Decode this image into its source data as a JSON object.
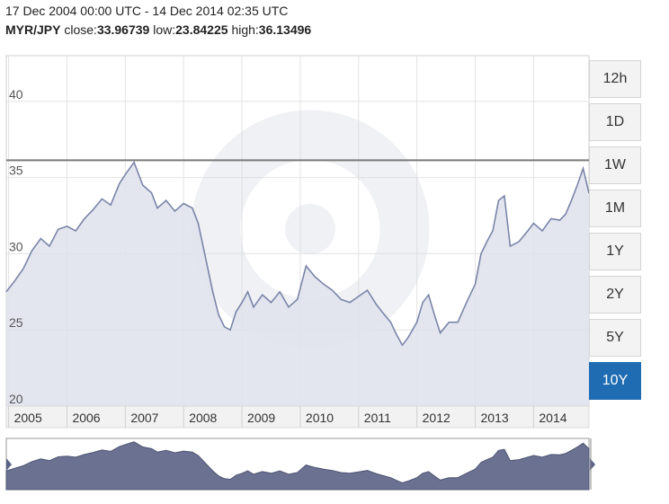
{
  "header": {
    "date_range": "17 Dec 2004 00:00 UTC - 14 Dec 2014 02:35 UTC",
    "pair": "MYR/JPY",
    "close_label": "close:",
    "close_value": "33.96739",
    "low_label": "low:",
    "low_value": "23.84225",
    "high_label": "high:",
    "high_value": "36.13496"
  },
  "range_buttons": [
    {
      "label": "12h",
      "active": false
    },
    {
      "label": "1D",
      "active": false
    },
    {
      "label": "1W",
      "active": false
    },
    {
      "label": "1M",
      "active": false
    },
    {
      "label": "1Y",
      "active": false
    },
    {
      "label": "2Y",
      "active": false
    },
    {
      "label": "5Y",
      "active": false
    },
    {
      "label": "10Y",
      "active": true
    }
  ],
  "colors": {
    "line": "#7a85a8",
    "fill": "#dfe2ec",
    "navigator_fill": "#6b7190",
    "high_line": "#7a7a7a",
    "grid": "#e3e3e3",
    "active_button": "#1f6cb3"
  },
  "chart_data": {
    "type": "area",
    "title": "",
    "xlabel": "",
    "ylabel": "",
    "x_ticks": [
      "2005",
      "2006",
      "2007",
      "2008",
      "2009",
      "2010",
      "2011",
      "2012",
      "2013",
      "2014"
    ],
    "y_ticks": [
      20,
      25,
      30,
      35,
      40
    ],
    "ylim": [
      20,
      43
    ],
    "xlim": [
      2004.96,
      2014.95
    ],
    "high_line": 36.13496,
    "grid": true,
    "series": [
      {
        "x": [
          2004.96,
          2005.1,
          2005.25,
          2005.4,
          2005.55,
          2005.7,
          2005.85,
          2006.0,
          2006.15,
          2006.3,
          2006.45,
          2006.6,
          2006.75,
          2006.9,
          2007.0,
          2007.15,
          2007.3,
          2007.45,
          2007.55,
          2007.7,
          2007.85,
          2008.0,
          2008.15,
          2008.25,
          2008.35,
          2008.5,
          2008.6,
          2008.7,
          2008.8,
          2008.9,
          2009.0,
          2009.1,
          2009.2,
          2009.35,
          2009.5,
          2009.65,
          2009.8,
          2009.95,
          2010.1,
          2010.25,
          2010.4,
          2010.55,
          2010.7,
          2010.85,
          2011.0,
          2011.15,
          2011.3,
          2011.4,
          2011.55,
          2011.65,
          2011.75,
          2011.85,
          2012.0,
          2012.1,
          2012.2,
          2012.3,
          2012.4,
          2012.55,
          2012.7,
          2012.85,
          2013.0,
          2013.1,
          2013.2,
          2013.3,
          2013.4,
          2013.5,
          2013.6,
          2013.75,
          2013.9,
          2014.0,
          2014.15,
          2014.3,
          2014.45,
          2014.55,
          2014.65,
          2014.75,
          2014.85,
          2014.95
        ],
        "y": [
          27.5,
          28.2,
          29.0,
          30.2,
          31.0,
          30.5,
          31.6,
          31.8,
          31.5,
          32.3,
          32.9,
          33.6,
          33.2,
          34.6,
          35.2,
          36.0,
          34.5,
          34.0,
          33.0,
          33.5,
          32.8,
          33.3,
          33.0,
          32.0,
          30.2,
          27.5,
          26.0,
          25.2,
          25.0,
          26.2,
          26.8,
          27.5,
          26.5,
          27.3,
          26.8,
          27.5,
          26.5,
          27.0,
          29.2,
          28.5,
          28.0,
          27.6,
          27.0,
          26.8,
          27.2,
          27.6,
          26.7,
          26.2,
          25.5,
          24.7,
          24.0,
          24.5,
          25.5,
          26.8,
          27.3,
          26.0,
          24.8,
          25.5,
          25.5,
          26.8,
          28.0,
          30.0,
          30.8,
          31.5,
          33.5,
          33.8,
          30.5,
          30.8,
          31.5,
          32.0,
          31.5,
          32.3,
          32.2,
          32.6,
          33.5,
          34.5,
          35.6,
          33.97
        ]
      }
    ]
  }
}
